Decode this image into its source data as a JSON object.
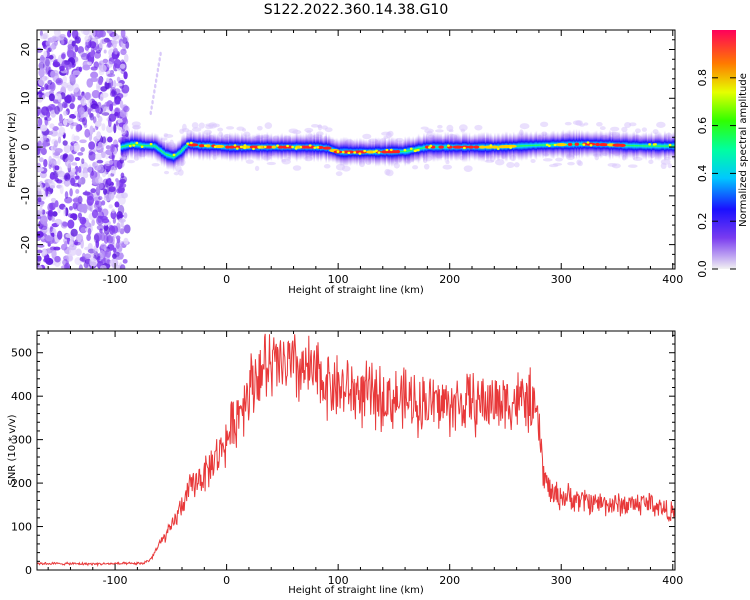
{
  "title": "S122.2022.360.14.38.G10",
  "chart_data": [
    {
      "type": "heatmap",
      "xlabel": "Height of straight line (km)",
      "ylabel": "Frequency (Hz)",
      "xlim": [
        -170,
        402
      ],
      "ylim": [
        -25,
        24
      ],
      "x_ticks": [
        -100,
        0,
        100,
        200,
        300,
        400
      ],
      "y_ticks": [
        20,
        10,
        0,
        -10,
        -20
      ],
      "colorbar": {
        "label": "Normalized spectral amplitude",
        "range": [
          0,
          1
        ],
        "ticks": [
          0.0,
          0.2,
          0.4,
          0.6,
          0.8
        ]
      },
      "ridge": {
        "x": [
          -95,
          -85,
          -75,
          -65,
          -55,
          -48,
          -42,
          -35,
          -25,
          -10,
          0,
          20,
          40,
          60,
          80,
          90,
          100,
          120,
          140,
          160,
          170,
          180,
          200,
          220,
          240,
          260,
          280,
          300,
          320,
          340,
          360,
          380,
          400
        ],
        "y": [
          0,
          0.6,
          0.3,
          0.2,
          -1.5,
          -2.0,
          -1.0,
          0.6,
          0.3,
          0.2,
          0,
          0,
          0,
          0,
          0,
          -0.2,
          -1.0,
          -1.0,
          -1.0,
          -0.9,
          -0.4,
          0,
          0,
          0,
          0,
          0.2,
          0.4,
          0.5,
          0.6,
          0.5,
          0.3,
          0.2,
          0.2
        ]
      },
      "peak_amplitude_ranges": [
        [
          -30,
          100
        ],
        [
          100,
          160
        ],
        [
          180,
          260
        ],
        [
          300,
          360
        ]
      ],
      "noise_region_x": [
        -170,
        -95
      ]
    },
    {
      "type": "line",
      "xlabel": "Height of straight line (km)",
      "ylabel": "SNR (10 * v/v)",
      "xlim": [
        -170,
        402
      ],
      "ylim": [
        0,
        550
      ],
      "x_ticks": [
        -100,
        0,
        100,
        200,
        300,
        400
      ],
      "y_ticks": [
        0,
        100,
        200,
        300,
        400,
        500
      ],
      "color": "#e8393a",
      "envelope": {
        "x": [
          -170,
          -120,
          -75,
          -68,
          -60,
          -50,
          -40,
          -30,
          -20,
          -10,
          0,
          10,
          20,
          30,
          50,
          70,
          100,
          130,
          160,
          200,
          230,
          260,
          275,
          280,
          285,
          292,
          300,
          320,
          350,
          380,
          400
        ],
        "y": [
          15,
          14,
          15,
          25,
          60,
          95,
          150,
          200,
          220,
          255,
          300,
          360,
          420,
          460,
          470,
          460,
          420,
          400,
          390,
          380,
          385,
          390,
          385,
          320,
          210,
          175,
          170,
          160,
          150,
          155,
          130
        ]
      },
      "noise_amplitude_fraction": 0.16,
      "peak_max": 555
    }
  ]
}
